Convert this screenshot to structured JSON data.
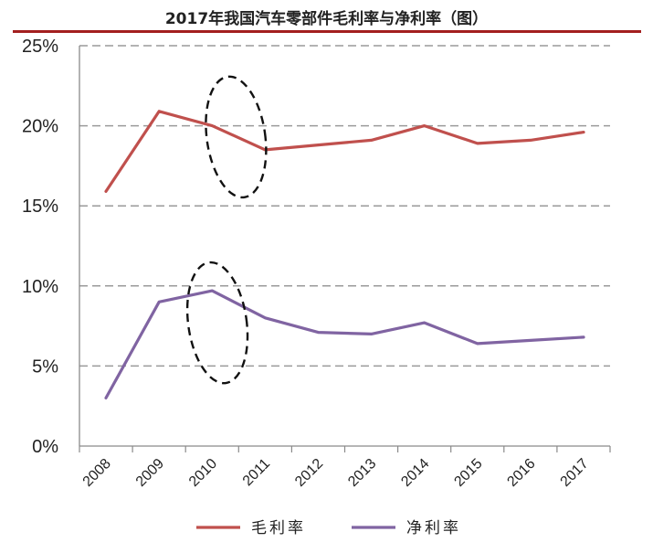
{
  "chart_data": {
    "type": "line",
    "title": "2017年我国汽车零部件毛利率与净利率（图）",
    "xlabel": "",
    "ylabel": "",
    "x": [
      "2008",
      "2009",
      "2010",
      "2011",
      "2012",
      "2013",
      "2014",
      "2015",
      "2016",
      "2017"
    ],
    "y_ticks": [
      "0%",
      "5%",
      "10%",
      "15%",
      "20%",
      "25%"
    ],
    "ylim": [
      0,
      25
    ],
    "grid": "horizontal-dashed",
    "legend": "bottom-center",
    "series": [
      {
        "name": "毛利率",
        "color": "#c0504d",
        "values": [
          15.9,
          20.9,
          20.0,
          18.5,
          18.8,
          19.1,
          20.0,
          18.9,
          19.1,
          19.6
        ]
      },
      {
        "name": "净利率",
        "color": "#8064a2",
        "values": [
          3.0,
          9.0,
          9.7,
          8.0,
          7.1,
          7.0,
          7.7,
          6.4,
          6.6,
          6.8
        ]
      }
    ],
    "annotations": [
      {
        "shape": "dashed-ellipse",
        "around": "毛利率 2010-2011",
        "x_center": 2010.45,
        "y_center": 19.3,
        "rx_years": 0.55,
        "ry": 3.8
      },
      {
        "shape": "dashed-ellipse",
        "around": "净利率 2010-2011",
        "x_center": 2010.1,
        "y_center": 7.7,
        "rx_years": 0.55,
        "ry": 3.8
      }
    ]
  }
}
